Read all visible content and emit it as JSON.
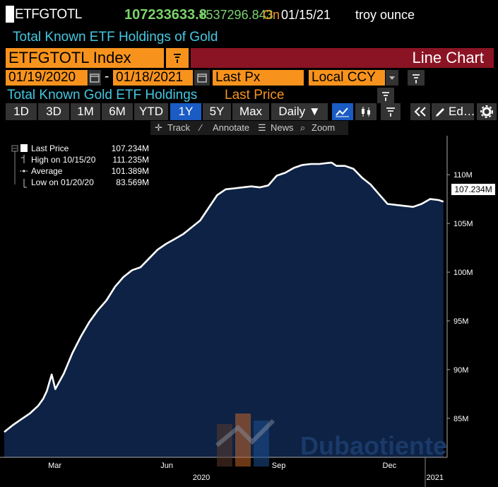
{
  "ticker": {
    "symbol": "ETFGTOTL",
    "last": "107233633.8",
    "change": "+537296.843",
    "on_label": "On",
    "date": "01/15/21",
    "unit": "troy ounce",
    "description": "Total Known ETF Holdings of Gold"
  },
  "security": {
    "field": "ETFGTOTL Index",
    "chart_type": "Line Chart"
  },
  "range": {
    "start": "01/19/2020",
    "dash": "-",
    "end": "01/18/2021",
    "field": "Last Px",
    "currency": "Local CCY"
  },
  "series": {
    "title": "Total Known Gold ETF Holdings",
    "field": "Last Price"
  },
  "toolbar": {
    "periods": [
      "1D",
      "3D",
      "1M",
      "6M",
      "YTD",
      "1Y",
      "5Y",
      "Max"
    ],
    "active_period": "1Y",
    "frequency": "Daily ▼",
    "edit_label": "Ed…"
  },
  "tools": {
    "track": "Track",
    "annotate": "Annotate",
    "news": "News",
    "zoom": "Zoom"
  },
  "legend": {
    "items": [
      {
        "label": "Last Price",
        "value": "107.234M"
      },
      {
        "label": "High on 10/15/20",
        "value": "111.235M"
      },
      {
        "label": "Average",
        "value": "101.389M"
      },
      {
        "label": "Low on 01/20/20",
        "value": "83.569M"
      }
    ]
  },
  "last_tag": "107.234M",
  "watermark_text": "Dubaotiente",
  "colors": {
    "accent_orange": "#f7931d",
    "banner_red": "#8b1424",
    "title_cyan": "#44c8e2",
    "positive_green": "#7bd36c",
    "area_fill": "#0d2244",
    "active_tab": "#1a5bc4"
  },
  "chart_data": {
    "type": "area",
    "title": "Total Known Gold ETF Holdings",
    "ylabel": "",
    "xlabel": "",
    "ylim": [
      81,
      114
    ],
    "yticks": [
      85,
      90,
      95,
      100,
      105,
      110
    ],
    "ytick_labels": [
      "85M",
      "90M",
      "95M",
      "100M",
      "105M",
      "110M"
    ],
    "xticks": [
      {
        "x": "2020-03-01",
        "label": "Mar"
      },
      {
        "x": "2020-06-01",
        "label": "Jun"
      },
      {
        "x": "2020-09-01",
        "label": "Sep"
      },
      {
        "x": "2020-12-01",
        "label": "Dec"
      }
    ],
    "year_labels": [
      {
        "x": "2020-06-30",
        "label": "2020"
      },
      {
        "x": "2021-01-08",
        "label": "2021"
      }
    ],
    "xlim": [
      "2020-01-20",
      "2021-01-18"
    ],
    "grid": false,
    "legend_position": "top-left",
    "series": [
      {
        "name": "Last Price",
        "x": [
          "2020-01-20",
          "2020-01-27",
          "2020-02-03",
          "2020-02-10",
          "2020-02-17",
          "2020-02-21",
          "2020-02-24",
          "2020-02-28",
          "2020-03-02",
          "2020-03-09",
          "2020-03-16",
          "2020-03-23",
          "2020-03-30",
          "2020-04-06",
          "2020-04-13",
          "2020-04-20",
          "2020-04-27",
          "2020-05-04",
          "2020-05-11",
          "2020-05-18",
          "2020-05-25",
          "2020-06-01",
          "2020-06-08",
          "2020-06-15",
          "2020-06-22",
          "2020-06-29",
          "2020-07-06",
          "2020-07-13",
          "2020-07-20",
          "2020-07-27",
          "2020-08-03",
          "2020-08-10",
          "2020-08-17",
          "2020-08-24",
          "2020-08-31",
          "2020-09-07",
          "2020-09-14",
          "2020-09-21",
          "2020-09-28",
          "2020-10-05",
          "2020-10-12",
          "2020-10-15",
          "2020-10-19",
          "2020-10-26",
          "2020-11-02",
          "2020-11-09",
          "2020-11-16",
          "2020-11-23",
          "2020-11-30",
          "2020-12-07",
          "2020-12-14",
          "2020-12-21",
          "2020-12-28",
          "2021-01-04",
          "2021-01-11",
          "2021-01-15"
        ],
        "values": [
          83.6,
          84.3,
          84.9,
          85.5,
          86.3,
          87.0,
          87.8,
          89.5,
          88.0,
          89.6,
          91.7,
          93.4,
          94.9,
          96.1,
          97.1,
          98.5,
          99.5,
          100.2,
          100.5,
          101.4,
          102.3,
          102.9,
          103.4,
          103.9,
          104.6,
          105.3,
          106.6,
          107.9,
          108.5,
          108.6,
          108.7,
          108.8,
          108.7,
          108.9,
          109.9,
          110.2,
          110.7,
          111.0,
          111.1,
          111.1,
          111.2,
          111.235,
          110.9,
          110.9,
          110.6,
          109.7,
          109.0,
          108.0,
          107.0,
          106.9,
          106.8,
          106.7,
          107.0,
          107.5,
          107.4,
          107.234
        ]
      }
    ]
  }
}
